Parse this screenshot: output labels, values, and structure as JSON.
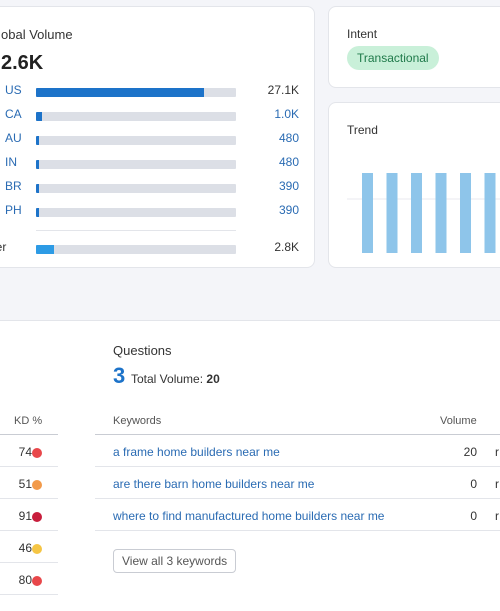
{
  "global_volume": {
    "title": "obal Volume",
    "total": "2.6K",
    "countries": [
      {
        "code": "US",
        "value": "27.1K",
        "fill": 0.84
      },
      {
        "code": "CA",
        "value": "1.0K",
        "fill": 0.03
      },
      {
        "code": "AU",
        "value": "480",
        "fill": 0.015
      },
      {
        "code": "IN",
        "value": "480",
        "fill": 0.015
      },
      {
        "code": "BR",
        "value": "390",
        "fill": 0.012
      },
      {
        "code": "PH",
        "value": "390",
        "fill": 0.012
      }
    ],
    "other": {
      "label": "her",
      "value": "2.8K",
      "fill": 0.09
    }
  },
  "intent": {
    "title": "Intent",
    "badge": "Transactional"
  },
  "trend": {
    "title": "Trend",
    "values": [
      1,
      1,
      1,
      1,
      1,
      1
    ]
  },
  "kd": {
    "header": "KD %",
    "rows": [
      {
        "value": "74",
        "color": "#e8474a"
      },
      {
        "value": "51",
        "color": "#f29a4a"
      },
      {
        "value": "91",
        "color": "#c81e3c"
      },
      {
        "value": "46",
        "color": "#f5c544"
      },
      {
        "value": "80",
        "color": "#e8474a"
      }
    ]
  },
  "questions": {
    "title": "Questions",
    "count": "3",
    "total_volume_label": "Total Volume:",
    "total_volume_value": "20",
    "keywords_header": "Keywords",
    "volume_header": "Volume",
    "rows": [
      {
        "keyword": "a frame home builders near me",
        "volume": "20",
        "extra": "r"
      },
      {
        "keyword": "are there barn home builders near me",
        "volume": "0",
        "extra": "r"
      },
      {
        "keyword": "where to find manufactured home builders near me",
        "volume": "0",
        "extra": "r"
      }
    ],
    "view_all": "View all 3 keywords"
  },
  "colors": {
    "bar_primary": "#1d73c9",
    "bar_other": "#2d9be5",
    "trend_bar": "#8ec5ea",
    "intent_bg": "#c9f0d9"
  }
}
